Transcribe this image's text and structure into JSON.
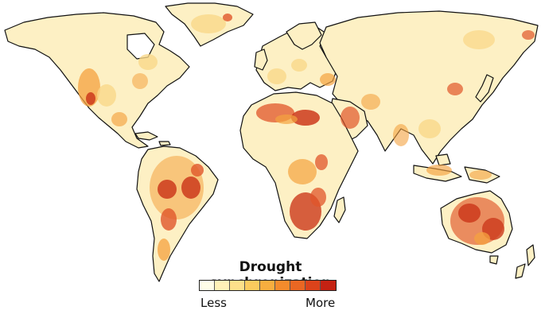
{
  "legend": {
    "title": "Drought synchronization",
    "low_label": "Less",
    "high_label": "More",
    "colors": [
      "#fffde8",
      "#fff1b8",
      "#fde08a",
      "#fbcb5e",
      "#f7ae3f",
      "#f38b2c",
      "#ea6723",
      "#dc431b",
      "#c42213"
    ]
  },
  "map_colors": {
    "land_base": "#fdf0c4",
    "low": "#f9d889",
    "mid": "#f4a23f",
    "high": "#e0562a",
    "very_high": "#cc3a1c",
    "coastline": "#111111"
  }
}
